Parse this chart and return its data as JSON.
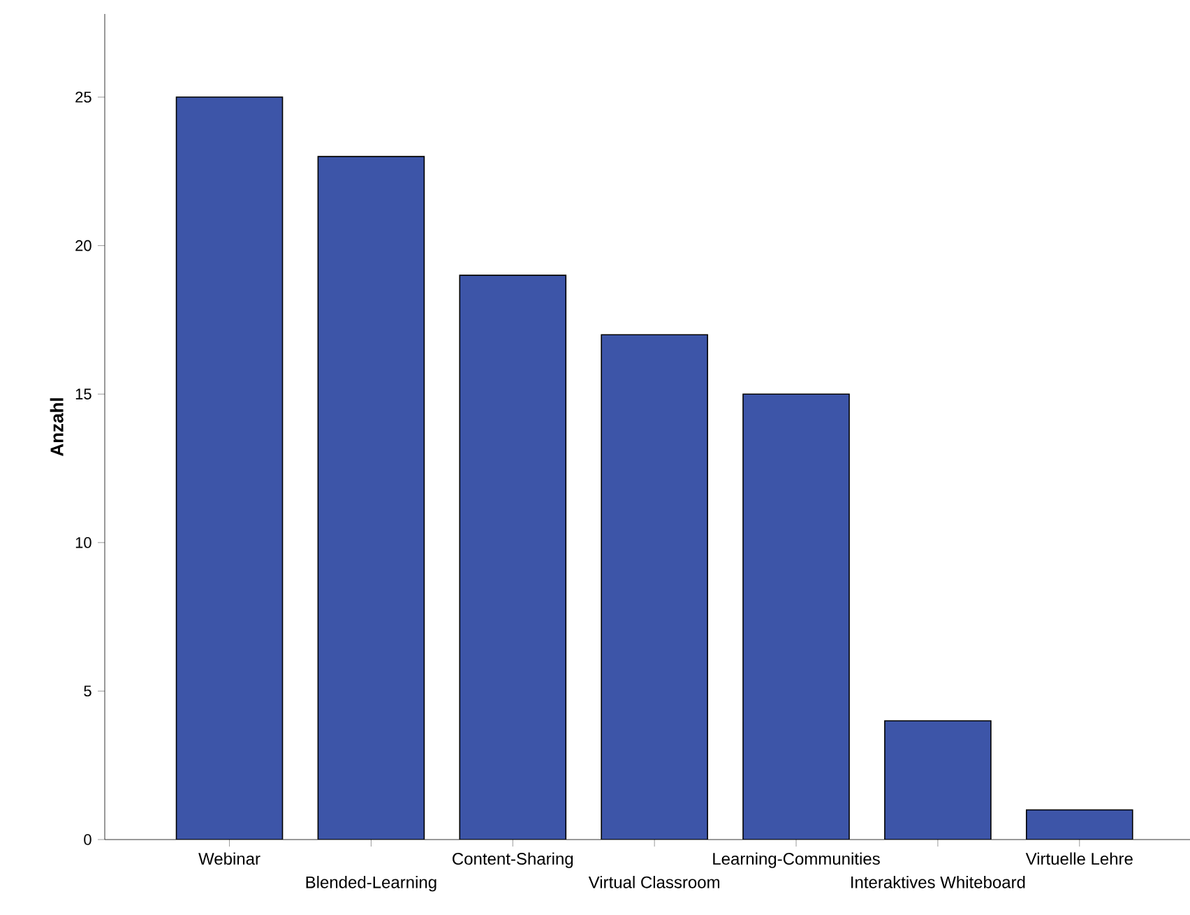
{
  "chart_data": {
    "type": "bar",
    "ylabel": "Anzahl",
    "categories": [
      "Webinar",
      "Blended-Learning",
      "Content-Sharing",
      "Virtual Classroom",
      "Learning-Communities",
      "Interaktives Whiteboard",
      "Virtuelle Lehre"
    ],
    "values": [
      25,
      23,
      19,
      17,
      15,
      4,
      1
    ],
    "color": "#3d55a8",
    "ylim": [
      0,
      27.8
    ],
    "yticks": [
      0,
      5,
      10,
      15,
      20,
      25
    ]
  }
}
